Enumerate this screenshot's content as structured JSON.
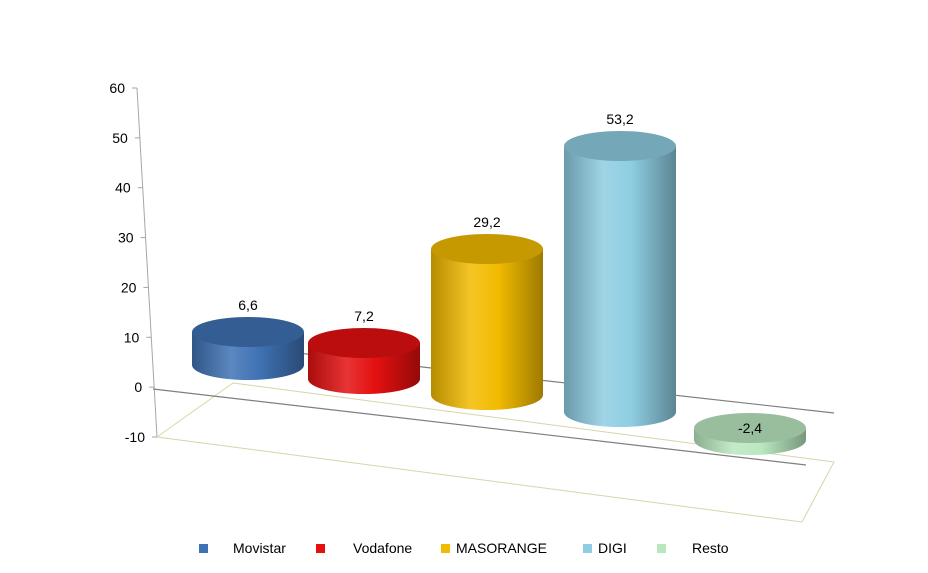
{
  "chart_data": {
    "type": "bar",
    "style": "3d-cylinder",
    "categories": [
      "Movistar",
      "Vodafone",
      "MASORANGE",
      "DIGI",
      "Resto"
    ],
    "values": [
      6.6,
      7.2,
      29.2,
      53.2,
      -2.4
    ],
    "value_labels": [
      "6,6",
      "7,2",
      "29,2",
      "53,2",
      "-2,4"
    ],
    "colors": [
      "#3f72b4",
      "#e41010",
      "#f2bb00",
      "#8ecde2",
      "#b9e8bf"
    ],
    "ylim": [
      -10,
      60
    ],
    "yticks": [
      60,
      50,
      40,
      30,
      20,
      10,
      0,
      -10
    ],
    "ytick_labels": [
      "60",
      "50",
      "40",
      "30",
      "20",
      "10",
      "0",
      "-10"
    ],
    "title": "",
    "xlabel": "",
    "ylabel": "",
    "grid": false,
    "legend_position": "bottom",
    "legend": [
      "Movistar",
      "Vodafone",
      "MASORANGE",
      "DIGI",
      "Resto"
    ]
  }
}
